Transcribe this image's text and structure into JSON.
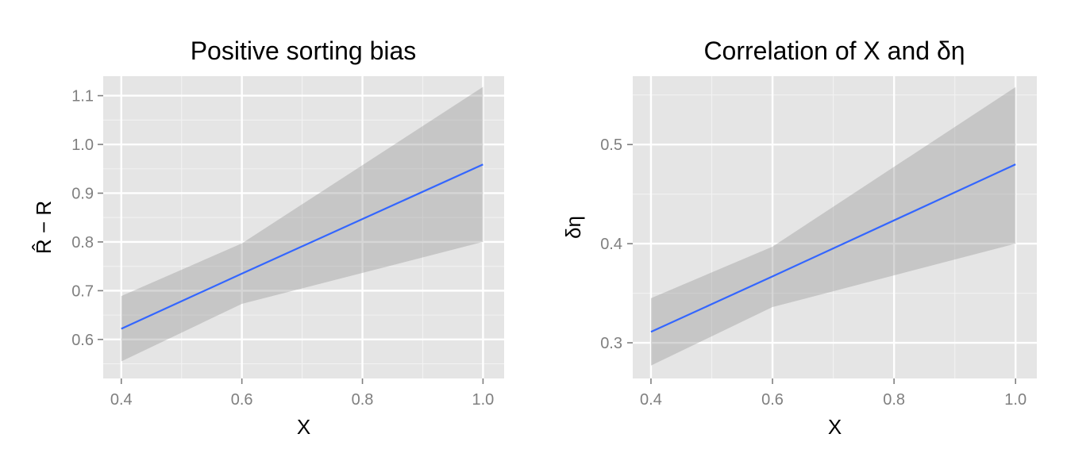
{
  "chart_data": [
    {
      "type": "line",
      "title": "Positive sorting bias",
      "xlabel": "X",
      "ylabel": "R̂ − R",
      "xlim": [
        0.37,
        1.035
      ],
      "ylim": [
        0.52,
        1.14
      ],
      "x_ticks": [
        0.4,
        0.6,
        0.8,
        1.0
      ],
      "x_tick_labels": [
        "0.4",
        "0.6",
        "0.8",
        "1.0"
      ],
      "y_ticks": [
        0.6,
        0.7,
        0.8,
        0.9,
        1.0,
        1.1
      ],
      "y_tick_labels": [
        "0.6",
        "0.7",
        "0.8",
        "0.9",
        "1.0",
        "1.1"
      ],
      "grid": true,
      "series": [
        {
          "x": [
            0.4,
            0.6,
            1.0
          ],
          "y": [
            0.622,
            0.735,
            0.959
          ],
          "lower": [
            0.555,
            0.673,
            0.8
          ],
          "upper": [
            0.689,
            0.797,
            1.118
          ]
        }
      ]
    },
    {
      "type": "line",
      "title": "Correlation of X and δη",
      "xlabel": "X",
      "ylabel": "δη",
      "xlim": [
        0.37,
        1.035
      ],
      "ylim": [
        0.264,
        0.569
      ],
      "x_ticks": [
        0.4,
        0.6,
        0.8,
        1.0
      ],
      "x_tick_labels": [
        "0.4",
        "0.6",
        "0.8",
        "1.0"
      ],
      "y_ticks": [
        0.3,
        0.4,
        0.5
      ],
      "y_tick_labels": [
        "0.3",
        "0.4",
        "0.5"
      ],
      "grid": true,
      "series": [
        {
          "x": [
            0.4,
            0.6,
            1.0
          ],
          "y": [
            0.311,
            0.367,
            0.48
          ],
          "lower": [
            0.277,
            0.336,
            0.4
          ],
          "upper": [
            0.345,
            0.397,
            0.558
          ]
        }
      ]
    }
  ],
  "colors": {
    "panel_background": "#e5e5e5",
    "grid": "#ffffff",
    "ribbon": "#999999",
    "line": "#3366ff",
    "tick_text": "#7f7f7f"
  }
}
